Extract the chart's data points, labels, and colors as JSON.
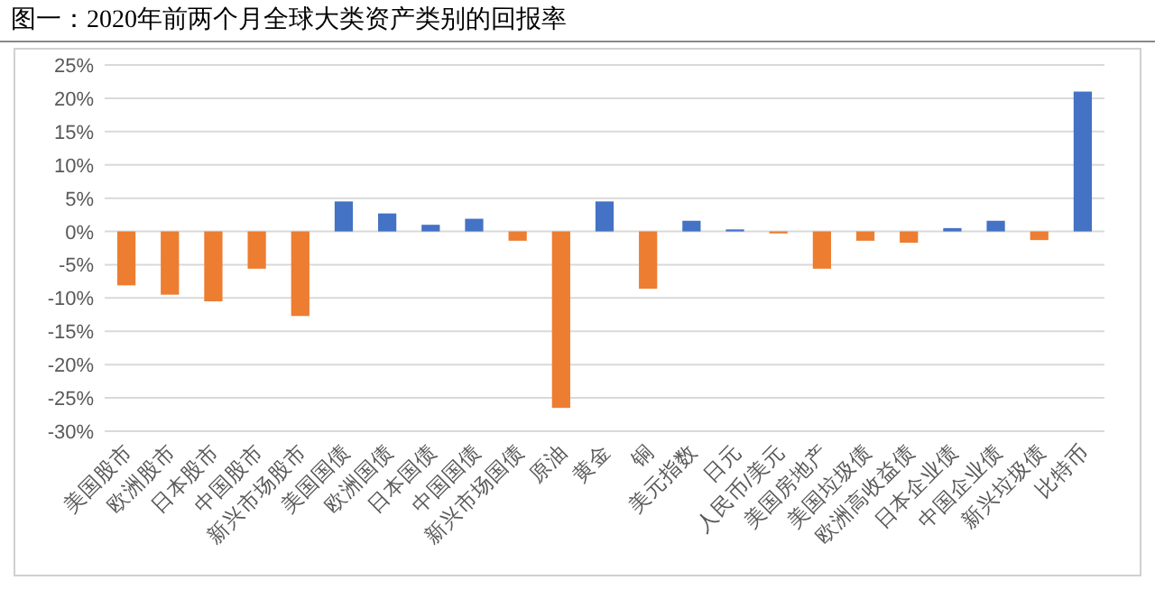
{
  "chart_data": {
    "type": "bar",
    "title": "图一：2020年前两个月全球大类资产类别的回报率",
    "categories": [
      "美国股市",
      "欧洲股市",
      "日本股市",
      "中国股市",
      "新兴市场股市",
      "美国国债",
      "欧洲国债",
      "日本国债",
      "中国国债",
      "新兴市场国债",
      "原油",
      "黄金",
      "铜",
      "美元指数",
      "日元",
      "人民币/美元",
      "美国房地产",
      "美国垃圾债",
      "欧洲高收益债",
      "日本企业债",
      "中国企业债",
      "新兴垃圾债",
      "比特币"
    ],
    "values": [
      -8.1,
      -9.5,
      -10.5,
      -5.6,
      -12.7,
      4.5,
      2.7,
      1.0,
      1.9,
      -1.4,
      -26.5,
      4.5,
      -8.6,
      1.6,
      0.3,
      -0.3,
      -5.6,
      -1.4,
      -1.7,
      0.5,
      1.6,
      -1.3,
      21.0
    ],
    "colors": [
      "#ed7d31",
      "#ed7d31",
      "#ed7d31",
      "#ed7d31",
      "#ed7d31",
      "#4472c4",
      "#4472c4",
      "#4472c4",
      "#4472c4",
      "#ed7d31",
      "#ed7d31",
      "#4472c4",
      "#ed7d31",
      "#4472c4",
      "#4472c4",
      "#ed7d31",
      "#ed7d31",
      "#ed7d31",
      "#ed7d31",
      "#4472c4",
      "#4472c4",
      "#ed7d31",
      "#4472c4"
    ],
    "ylim": [
      -30,
      25
    ],
    "yticks": [
      {
        "value": -30,
        "label": "-30%"
      },
      {
        "value": -25,
        "label": "-25%"
      },
      {
        "value": -20,
        "label": "-20%"
      },
      {
        "value": -15,
        "label": "-15%"
      },
      {
        "value": -10,
        "label": "-10%"
      },
      {
        "value": -5,
        "label": "-5%"
      },
      {
        "value": 0,
        "label": "0%"
      },
      {
        "value": 5,
        "label": "5%"
      },
      {
        "value": 10,
        "label": "10%"
      },
      {
        "value": 15,
        "label": "15%"
      },
      {
        "value": 20,
        "label": "20%"
      },
      {
        "value": 25,
        "label": "25%"
      }
    ],
    "grid": "y"
  }
}
